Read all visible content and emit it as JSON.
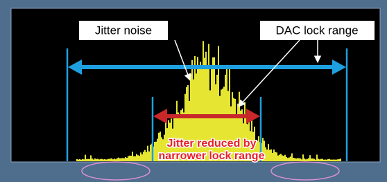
{
  "labels": {
    "jitter_noise": "Jitter noise",
    "dac_lock_range": "DAC lock range",
    "jitter_reduced": [
      "Jitter reduced by",
      "narrower lock range"
    ]
  }
}
